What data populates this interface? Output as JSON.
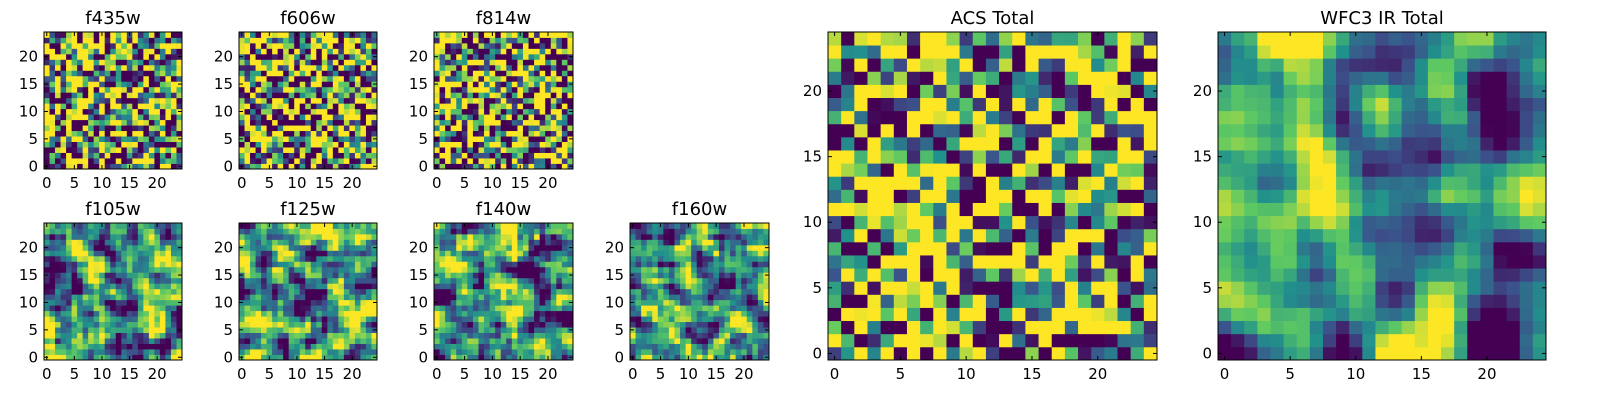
{
  "figure": {
    "colormap": [
      "#440154",
      "#3b528b",
      "#21918c",
      "#5ec962",
      "#fde725"
    ]
  },
  "chart_data": [
    {
      "type": "heatmap",
      "title": "f435w",
      "grid": false,
      "xlim": [
        -0.5,
        24.5
      ],
      "ylim": [
        -0.5,
        24.5
      ],
      "xticks": [
        0,
        5,
        10,
        15,
        20
      ],
      "yticks": [
        0,
        5,
        10,
        15,
        20
      ],
      "xtick_labels": [
        "0",
        "5",
        "10",
        "15",
        "20"
      ],
      "ytick_labels": [
        "0",
        "5",
        "10",
        "15",
        "20"
      ],
      "size": [
        25,
        25
      ],
      "value_range": [
        0,
        1
      ],
      "seed": 11,
      "smooth": 0,
      "contrast": 1.0,
      "bias": 0.05
    },
    {
      "type": "heatmap",
      "title": "f606w",
      "grid": false,
      "xlim": [
        -0.5,
        24.5
      ],
      "ylim": [
        -0.5,
        24.5
      ],
      "xticks": [
        0,
        5,
        10,
        15,
        20
      ],
      "yticks": [
        0,
        5,
        10,
        15,
        20
      ],
      "xtick_labels": [
        "0",
        "5",
        "10",
        "15",
        "20"
      ],
      "ytick_labels": [
        "0",
        "5",
        "10",
        "15",
        "20"
      ],
      "size": [
        25,
        25
      ],
      "value_range": [
        0,
        1
      ],
      "seed": 23,
      "smooth": 0,
      "contrast": 1.0,
      "bias": 0.05
    },
    {
      "type": "heatmap",
      "title": "f814w",
      "grid": false,
      "xlim": [
        -0.5,
        24.5
      ],
      "ylim": [
        -0.5,
        24.5
      ],
      "xticks": [
        0,
        5,
        10,
        15,
        20
      ],
      "yticks": [
        0,
        5,
        10,
        15,
        20
      ],
      "xtick_labels": [
        "0",
        "5",
        "10",
        "15",
        "20"
      ],
      "ytick_labels": [
        "0",
        "5",
        "10",
        "15",
        "20"
      ],
      "size": [
        25,
        25
      ],
      "value_range": [
        0,
        1
      ],
      "seed": 37,
      "smooth": 0,
      "contrast": 1.0,
      "bias": 0.05
    },
    {
      "type": "heatmap",
      "title": "f105w",
      "grid": false,
      "xlim": [
        -0.5,
        24.5
      ],
      "ylim": [
        -0.5,
        24.5
      ],
      "xticks": [
        0,
        5,
        10,
        15,
        20
      ],
      "yticks": [
        0,
        5,
        10,
        15,
        20
      ],
      "xtick_labels": [
        "0",
        "5",
        "10",
        "15",
        "20"
      ],
      "ytick_labels": [
        "0",
        "5",
        "10",
        "15",
        "20"
      ],
      "size": [
        25,
        25
      ],
      "value_range": [
        0,
        1
      ],
      "seed": 51,
      "smooth": 1,
      "contrast": 1.7,
      "bias": 0.0
    },
    {
      "type": "heatmap",
      "title": "f125w",
      "grid": false,
      "xlim": [
        -0.5,
        24.5
      ],
      "ylim": [
        -0.5,
        24.5
      ],
      "xticks": [
        0,
        5,
        10,
        15,
        20
      ],
      "yticks": [
        0,
        5,
        10,
        15,
        20
      ],
      "xtick_labels": [
        "0",
        "5",
        "10",
        "15",
        "20"
      ],
      "ytick_labels": [
        "0",
        "5",
        "10",
        "15",
        "20"
      ],
      "size": [
        25,
        25
      ],
      "value_range": [
        0,
        1
      ],
      "seed": 63,
      "smooth": 1,
      "contrast": 1.7,
      "bias": 0.05
    },
    {
      "type": "heatmap",
      "title": "f140w",
      "grid": false,
      "xlim": [
        -0.5,
        24.5
      ],
      "ylim": [
        -0.5,
        24.5
      ],
      "xticks": [
        0,
        5,
        10,
        15,
        20
      ],
      "yticks": [
        0,
        5,
        10,
        15,
        20
      ],
      "xtick_labels": [
        "0",
        "5",
        "10",
        "15",
        "20"
      ],
      "ytick_labels": [
        "0",
        "5",
        "10",
        "15",
        "20"
      ],
      "size": [
        25,
        25
      ],
      "value_range": [
        0,
        1
      ],
      "seed": 77,
      "smooth": 1,
      "contrast": 1.7,
      "bias": 0.0
    },
    {
      "type": "heatmap",
      "title": "f160w",
      "grid": false,
      "xlim": [
        -0.5,
        24.5
      ],
      "ylim": [
        -0.5,
        24.5
      ],
      "xticks": [
        0,
        5,
        10,
        15,
        20
      ],
      "yticks": [
        0,
        5,
        10,
        15,
        20
      ],
      "xtick_labels": [
        "0",
        "5",
        "10",
        "15",
        "20"
      ],
      "ytick_labels": [
        "0",
        "5",
        "10",
        "15",
        "20"
      ],
      "size": [
        25,
        25
      ],
      "value_range": [
        0,
        1
      ],
      "seed": 89,
      "smooth": 1,
      "contrast": 1.7,
      "bias": 0.0
    },
    {
      "type": "heatmap",
      "title": "ACS Total",
      "grid": false,
      "xlim": [
        -0.5,
        24.5
      ],
      "ylim": [
        -0.5,
        24.5
      ],
      "xticks": [
        0,
        5,
        10,
        15,
        20
      ],
      "yticks": [
        0,
        5,
        10,
        15,
        20
      ],
      "xtick_labels": [
        "0",
        "5",
        "10",
        "15",
        "20"
      ],
      "ytick_labels": [
        "0",
        "5",
        "10",
        "15",
        "20"
      ],
      "size": [
        25,
        25
      ],
      "value_range": [
        0,
        1
      ],
      "seed": 101,
      "smooth": 0,
      "contrast": 1.0,
      "bias": 0.12
    },
    {
      "type": "heatmap",
      "title": "WFC3 IR Total",
      "grid": false,
      "xlim": [
        -0.5,
        24.5
      ],
      "ylim": [
        -0.5,
        24.5
      ],
      "xticks": [
        0,
        5,
        10,
        15,
        20
      ],
      "yticks": [
        0,
        5,
        10,
        15,
        20
      ],
      "xtick_labels": [
        "0",
        "5",
        "10",
        "15",
        "20"
      ],
      "ytick_labels": [
        "0",
        "5",
        "10",
        "15",
        "20"
      ],
      "size": [
        25,
        25
      ],
      "value_range": [
        0,
        1
      ],
      "seed": 131,
      "smooth": 2,
      "contrast": 2.2,
      "bias": 0.0
    }
  ]
}
